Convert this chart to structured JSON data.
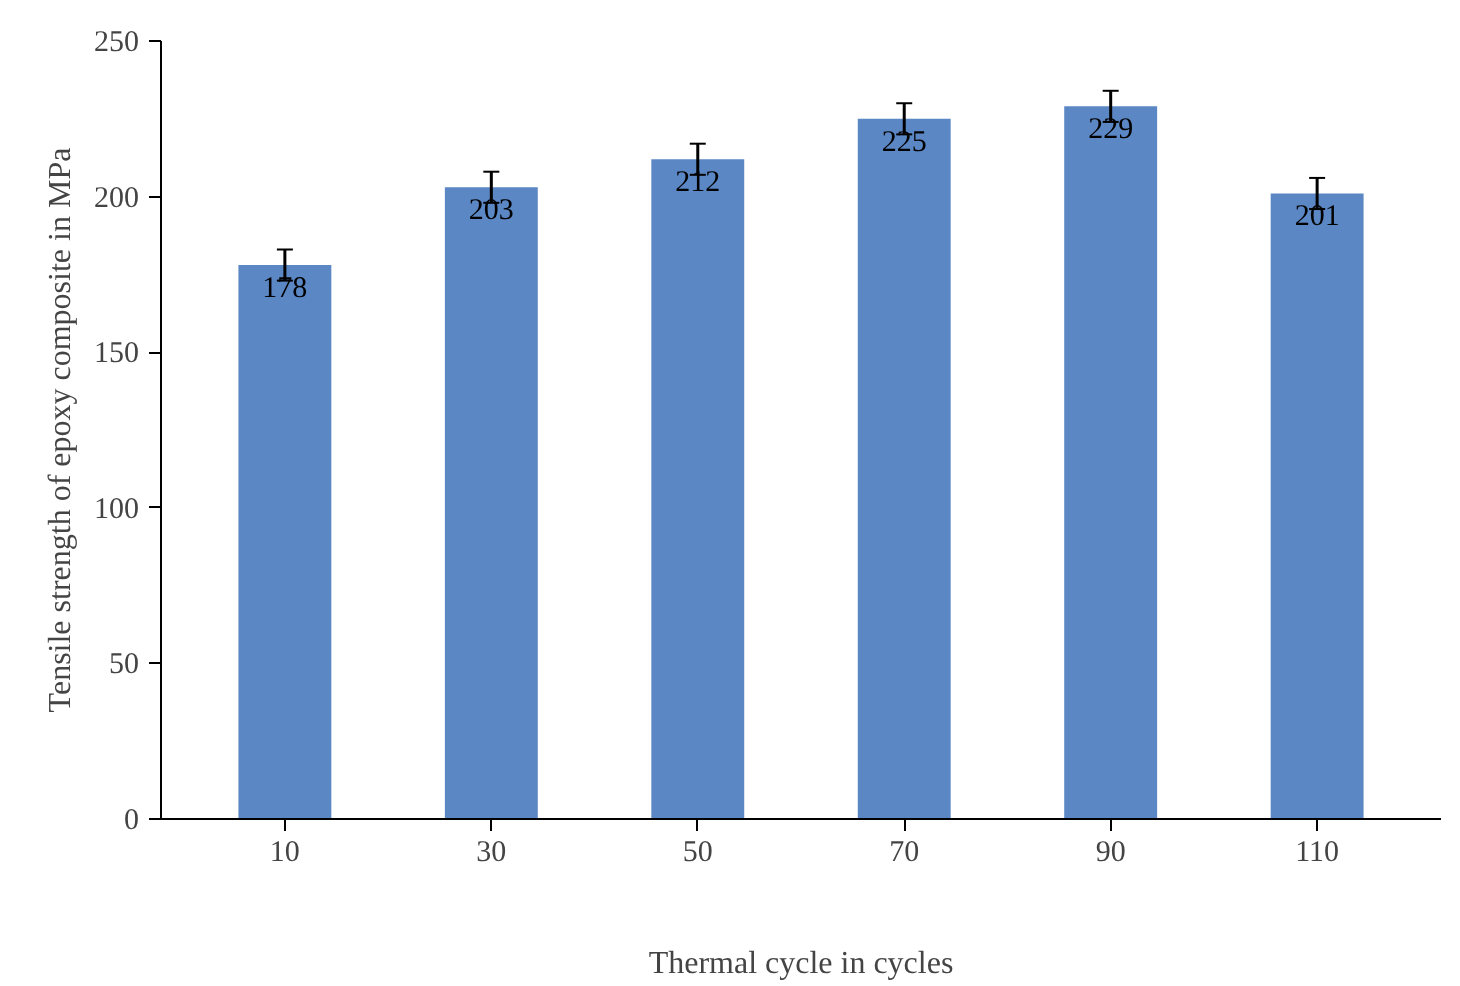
{
  "chart_data": {
    "type": "bar",
    "categories": [
      "10",
      "30",
      "50",
      "70",
      "90",
      "110"
    ],
    "values": [
      178,
      203,
      212,
      225,
      229,
      201
    ],
    "errors": [
      5,
      5,
      5,
      5,
      5,
      5
    ],
    "color": "#5b87c4",
    "data_labels": true,
    "xlabel": "Thermal cycle in cycles",
    "ylabel": "Tensile strength of epoxy composite in MPa",
    "ylim": [
      0,
      250
    ],
    "yticks": [
      0,
      50,
      100,
      150,
      200,
      250
    ],
    "grid": false
  }
}
